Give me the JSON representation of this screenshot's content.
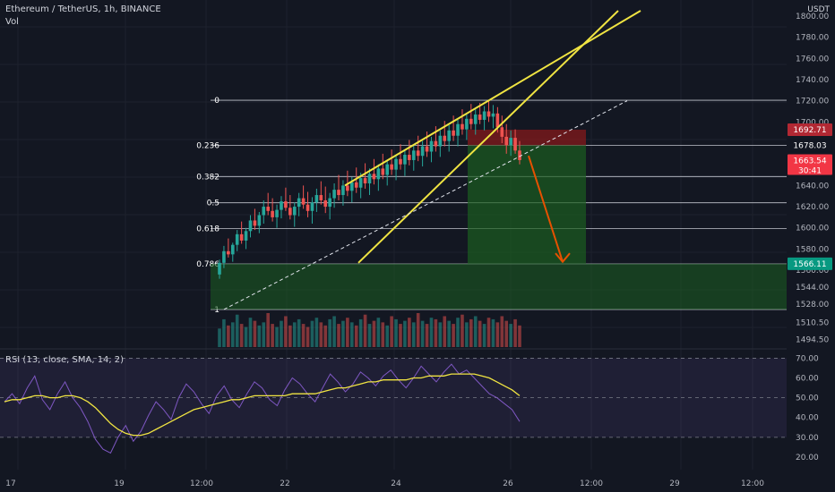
{
  "header": {
    "title": "Ethereum / TetherUS, 1h, BINANCE",
    "volume_label": "Vol",
    "currency": "USDT"
  },
  "rsi_label": "RSI (13, close, SMA, 14, 2)",
  "colors": {
    "up": "#26a69a",
    "down": "#ef5350",
    "trend": "#f0e442",
    "rsi": "#7e57c2",
    "rsi_ma": "#f0e442",
    "arrow": "#e65100",
    "target_zone": "#1b5e20",
    "stop_zone": "#8b1a1a"
  },
  "chart_data": [
    {
      "type": "candlestick",
      "title": "Ethereum / TetherUS, 1h, BINANCE",
      "x_ticks": [
        "17",
        "19",
        "12:00",
        "22",
        "24",
        "26",
        "12:00",
        "29",
        "12:00"
      ],
      "y_ticks": [
        "1800.00",
        "1780.00",
        "1760.00",
        "1740.00",
        "1720.00",
        "1700.00",
        "1640.00",
        "1620.00",
        "1600.00",
        "1580.00",
        "1560.00",
        "1544.00",
        "1528.00",
        "1510.50",
        "1494.50"
      ],
      "ylim": [
        1490,
        1805
      ],
      "price_labels": [
        {
          "text": "1692.71",
          "value": 1692.71,
          "color": "#b22833"
        },
        {
          "text": "1678.03",
          "value": 1678.03,
          "color": "#131722"
        },
        {
          "text": "1663.54",
          "sub": "30:41",
          "value": 1663.54,
          "color": "#f23645"
        },
        {
          "text": "1566.11",
          "value": 1566.11,
          "color": "#089981"
        }
      ],
      "fib_levels": [
        {
          "label": "0",
          "value": 1720.5
        },
        {
          "label": "0.236",
          "value": 1678.0
        },
        {
          "label": "0.382",
          "value": 1648.5
        },
        {
          "label": "0.5",
          "value": 1623.7
        },
        {
          "label": "0.618",
          "value": 1599.5
        },
        {
          "label": "0.786",
          "value": 1566.0
        },
        {
          "label": "1",
          "value": 1523.0
        }
      ],
      "candles": [
        [
          1556,
          1570,
          1552,
          1567
        ],
        [
          1567,
          1583,
          1562,
          1578
        ],
        [
          1578,
          1590,
          1572,
          1575
        ],
        [
          1575,
          1586,
          1568,
          1584
        ],
        [
          1584,
          1598,
          1578,
          1594
        ],
        [
          1594,
          1606,
          1585,
          1588
        ],
        [
          1588,
          1600,
          1580,
          1597
        ],
        [
          1597,
          1612,
          1591,
          1607
        ],
        [
          1607,
          1618,
          1598,
          1602
        ],
        [
          1602,
          1615,
          1595,
          1612
        ],
        [
          1612,
          1626,
          1604,
          1620
        ],
        [
          1620,
          1633,
          1612,
          1616
        ],
        [
          1616,
          1628,
          1606,
          1610
        ],
        [
          1610,
          1622,
          1600,
          1617
        ],
        [
          1617,
          1630,
          1609,
          1625
        ],
        [
          1625,
          1638,
          1616,
          1619
        ],
        [
          1619,
          1631,
          1608,
          1612
        ],
        [
          1612,
          1624,
          1601,
          1620
        ],
        [
          1620,
          1633,
          1611,
          1628
        ],
        [
          1628,
          1640,
          1618,
          1622
        ],
        [
          1622,
          1634,
          1610,
          1616
        ],
        [
          1616,
          1629,
          1604,
          1624
        ],
        [
          1624,
          1637,
          1615,
          1631
        ],
        [
          1631,
          1644,
          1622,
          1626
        ],
        [
          1626,
          1639,
          1614,
          1620
        ],
        [
          1620,
          1633,
          1608,
          1628
        ],
        [
          1628,
          1642,
          1619,
          1636
        ],
        [
          1636,
          1650,
          1626,
          1631
        ],
        [
          1631,
          1645,
          1621,
          1640
        ],
        [
          1640,
          1654,
          1630,
          1635
        ],
        [
          1635,
          1648,
          1624,
          1643
        ],
        [
          1643,
          1657,
          1633,
          1638
        ],
        [
          1638,
          1652,
          1628,
          1647
        ],
        [
          1647,
          1661,
          1637,
          1642
        ],
        [
          1642,
          1656,
          1631,
          1651
        ],
        [
          1651,
          1665,
          1641,
          1646
        ],
        [
          1646,
          1660,
          1635,
          1656
        ],
        [
          1656,
          1670,
          1646,
          1650
        ],
        [
          1650,
          1664,
          1640,
          1660
        ],
        [
          1660,
          1674,
          1650,
          1655
        ],
        [
          1655,
          1669,
          1645,
          1665
        ],
        [
          1665,
          1679,
          1655,
          1660
        ],
        [
          1660,
          1674,
          1649,
          1669
        ],
        [
          1669,
          1683,
          1659,
          1664
        ],
        [
          1664,
          1678,
          1654,
          1673
        ],
        [
          1673,
          1687,
          1663,
          1668
        ],
        [
          1668,
          1682,
          1658,
          1677
        ],
        [
          1677,
          1691,
          1667,
          1672
        ],
        [
          1672,
          1686,
          1662,
          1682
        ],
        [
          1682,
          1696,
          1672,
          1677
        ],
        [
          1677,
          1692,
          1667,
          1687
        ],
        [
          1687,
          1701,
          1677,
          1682
        ],
        [
          1682,
          1697,
          1672,
          1692
        ],
        [
          1692,
          1706,
          1682,
          1687
        ],
        [
          1687,
          1702,
          1677,
          1698
        ],
        [
          1698,
          1712,
          1688,
          1693
        ],
        [
          1693,
          1707,
          1683,
          1703
        ],
        [
          1703,
          1717,
          1693,
          1698
        ],
        [
          1698,
          1712,
          1688,
          1707
        ],
        [
          1707,
          1718,
          1698,
          1702
        ],
        [
          1702,
          1715,
          1692,
          1710
        ],
        [
          1710,
          1720,
          1700,
          1705
        ],
        [
          1705,
          1716,
          1694,
          1708
        ],
        [
          1708,
          1714,
          1690,
          1695
        ],
        [
          1695,
          1706,
          1680,
          1686
        ],
        [
          1686,
          1698,
          1670,
          1678
        ],
        [
          1678,
          1692,
          1668,
          1685
        ],
        [
          1685,
          1693,
          1670,
          1673
        ],
        [
          1673,
          1682,
          1660,
          1664
        ]
      ],
      "volume": [
        120,
        180,
        140,
        160,
        210,
        150,
        130,
        190,
        170,
        140,
        160,
        220,
        150,
        130,
        170,
        200,
        140,
        160,
        180,
        150,
        130,
        170,
        190,
        160,
        140,
        180,
        200,
        150,
        170,
        190,
        160,
        140,
        180,
        210,
        150,
        170,
        190,
        160,
        140,
        200,
        180,
        150,
        170,
        190,
        160,
        220,
        170,
        150,
        190,
        180,
        160,
        200,
        170,
        150,
        190,
        210,
        160,
        180,
        200,
        170,
        150,
        190,
        180,
        160,
        200,
        170,
        150,
        180,
        140
      ]
    },
    {
      "type": "line",
      "title": "RSI (13, close, SMA, 14, 2)",
      "y_ticks": [
        "70.00",
        "60.00",
        "50.00",
        "40.00",
        "30.00",
        "20.00"
      ],
      "ylim": [
        15,
        72
      ],
      "series": [
        {
          "name": "RSI",
          "values": [
            48,
            52,
            47,
            55,
            61,
            49,
            44,
            52,
            58,
            50,
            45,
            38,
            29,
            24,
            22,
            30,
            36,
            28,
            33,
            41,
            48,
            44,
            39,
            50,
            57,
            53,
            47,
            42,
            51,
            56,
            49,
            45,
            52,
            58,
            55,
            49,
            46,
            54,
            60,
            57,
            52,
            48,
            55,
            62,
            58,
            53,
            57,
            63,
            60,
            56,
            61,
            64,
            59,
            55,
            60,
            66,
            62,
            58,
            63,
            67,
            62,
            64,
            60,
            56,
            52,
            50,
            47,
            44,
            38
          ]
        },
        {
          "name": "SMA",
          "values": [
            48,
            49,
            49,
            50,
            51,
            51,
            50,
            50,
            51,
            51,
            50,
            48,
            45,
            41,
            37,
            34,
            32,
            31,
            31,
            32,
            34,
            36,
            38,
            40,
            42,
            44,
            45,
            46,
            47,
            48,
            49,
            49,
            50,
            51,
            51,
            51,
            51,
            51,
            52,
            52,
            52,
            52,
            53,
            54,
            55,
            55,
            56,
            57,
            58,
            58,
            59,
            59,
            59,
            59,
            60,
            60,
            61,
            61,
            61,
            62,
            62,
            62,
            62,
            61,
            60,
            58,
            56,
            54,
            51
          ]
        }
      ]
    }
  ]
}
